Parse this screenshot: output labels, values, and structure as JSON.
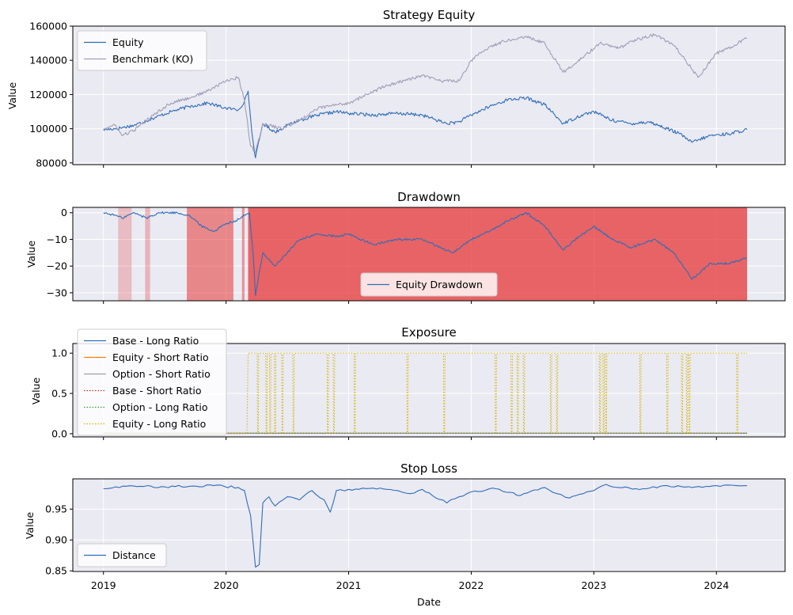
{
  "chart_data": [
    {
      "type": "line",
      "title": "Strategy Equity",
      "ylabel": "Value",
      "ylim": [
        79000,
        160000
      ],
      "yticks": [
        80000,
        100000,
        120000,
        140000,
        160000
      ],
      "ytick_labels": [
        "80000",
        "100000",
        "120000",
        "140000",
        "160000"
      ],
      "legend_position": "upper-left",
      "series": [
        {
          "name": "Equity",
          "color": "#2e6db8",
          "x": [
            2019.0,
            2019.1,
            2019.25,
            2019.4,
            2019.55,
            2019.7,
            2019.85,
            2020.0,
            2020.1,
            2020.15,
            2020.18,
            2020.21,
            2020.24,
            2020.3,
            2020.4,
            2020.5,
            2020.6,
            2020.75,
            2020.9,
            2021.0,
            2021.2,
            2021.4,
            2021.6,
            2021.8,
            2021.9,
            2022.0,
            2022.15,
            2022.3,
            2022.45,
            2022.6,
            2022.75,
            2022.9,
            2023.0,
            2023.15,
            2023.3,
            2023.45,
            2023.6,
            2023.7,
            2023.8,
            2023.95,
            2024.1,
            2024.25
          ],
          "y": [
            99500,
            100000,
            102000,
            106000,
            110000,
            113000,
            115000,
            112000,
            111000,
            116000,
            122000,
            98000,
            83000,
            103000,
            98000,
            102000,
            105000,
            108000,
            110000,
            109000,
            108000,
            109000,
            108000,
            103000,
            104000,
            108000,
            113000,
            117000,
            118000,
            114000,
            103000,
            108000,
            110000,
            105000,
            103000,
            104000,
            100000,
            97000,
            92000,
            96000,
            97000,
            99500
          ]
        },
        {
          "name": "Benchmark (KO)",
          "color": "#a09db8",
          "x": [
            2019.0,
            2019.1,
            2019.15,
            2019.25,
            2019.4,
            2019.55,
            2019.7,
            2019.85,
            2020.0,
            2020.1,
            2020.15,
            2020.2,
            2020.24,
            2020.3,
            2020.45,
            2020.6,
            2020.75,
            2020.9,
            2021.0,
            2021.15,
            2021.3,
            2021.45,
            2021.6,
            2021.75,
            2021.9,
            2022.0,
            2022.15,
            2022.3,
            2022.45,
            2022.6,
            2022.75,
            2022.9,
            2023.05,
            2023.2,
            2023.35,
            2023.5,
            2023.65,
            2023.75,
            2023.85,
            2024.0,
            2024.15,
            2024.25
          ],
          "y": [
            100000,
            102000,
            96000,
            99000,
            108000,
            115000,
            118000,
            122000,
            128000,
            130000,
            117000,
            90000,
            86000,
            103000,
            100000,
            105000,
            112000,
            114000,
            115000,
            120000,
            125000,
            128000,
            131000,
            128000,
            128000,
            140000,
            148000,
            152000,
            154000,
            150000,
            133000,
            141000,
            150000,
            147000,
            152000,
            155000,
            149000,
            140000,
            130000,
            144000,
            149000,
            153000
          ]
        }
      ]
    },
    {
      "type": "area",
      "title": "Drawdown",
      "ylabel": "Value",
      "ylim": [
        -33,
        2
      ],
      "yticks": [
        0,
        -10,
        -20,
        -30
      ],
      "ytick_labels": [
        "0",
        "−10",
        "−20",
        "−30"
      ],
      "legend_position": "lower-center",
      "drawdown_periods": [
        {
          "start": 2019.12,
          "end": 2019.23,
          "opacity": 0.25
        },
        {
          "start": 2019.34,
          "end": 2019.38,
          "opacity": 0.3
        },
        {
          "start": 2019.68,
          "end": 2020.06,
          "opacity": 0.55
        },
        {
          "start": 2020.13,
          "end": 2020.15,
          "opacity": 0.5
        },
        {
          "start": 2020.18,
          "end": 2024.25,
          "opacity": 0.75
        }
      ],
      "shade_color": "#e53535",
      "series": [
        {
          "name": "Equity Drawdown",
          "color": "#2e6db8",
          "x": [
            2019.0,
            2019.1,
            2019.15,
            2019.25,
            2019.35,
            2019.45,
            2019.6,
            2019.7,
            2019.8,
            2019.9,
            2020.0,
            2020.08,
            2020.15,
            2020.19,
            2020.22,
            2020.24,
            2020.3,
            2020.4,
            2020.5,
            2020.6,
            2020.75,
            2020.9,
            2021.0,
            2021.2,
            2021.4,
            2021.6,
            2021.75,
            2021.85,
            2022.0,
            2022.15,
            2022.3,
            2022.45,
            2022.6,
            2022.75,
            2022.85,
            2023.0,
            2023.15,
            2023.3,
            2023.5,
            2023.65,
            2023.8,
            2023.95,
            2024.1,
            2024.25
          ],
          "y": [
            0,
            -1,
            -2,
            0,
            -2,
            0,
            0,
            -1,
            -5,
            -7,
            -4,
            -3,
            -1,
            0,
            -15,
            -31,
            -15,
            -20,
            -15,
            -10,
            -8,
            -9,
            -8,
            -12,
            -10,
            -10,
            -13,
            -15,
            -10,
            -7,
            -3,
            0,
            -5,
            -14,
            -10,
            -5,
            -10,
            -13,
            -10,
            -15,
            -25,
            -19,
            -19,
            -17
          ]
        }
      ]
    },
    {
      "type": "line",
      "title": "Exposure",
      "ylabel": "Value",
      "ylim": [
        -0.04,
        1.12
      ],
      "yticks": [
        0.0,
        0.5,
        1.0
      ],
      "ytick_labels": [
        "0.0",
        "0.5",
        "1.0"
      ],
      "legend_position": "upper-left",
      "series": [
        {
          "name": "Base - Long Ratio",
          "color": "#2e6db8",
          "style": "solid"
        },
        {
          "name": "Equity - Short Ratio",
          "color": "#ff7f0e",
          "style": "solid"
        },
        {
          "name": "Option - Short Ratio",
          "color": "#a0a0a0",
          "style": "solid"
        },
        {
          "name": "Base - Short Ratio",
          "color": "#d62728",
          "style": "dotted"
        },
        {
          "name": "Option - Long Ratio",
          "color": "#2ca02c",
          "style": "dotted"
        },
        {
          "name": "Equity - Long Ratio",
          "color": "#d4b400",
          "style": "dotted",
          "value": 1.0,
          "flat_value": 0.0,
          "flat_start": 2019.0,
          "flat_end": 2020.17,
          "end": 2024.25,
          "dips": [
            2020.26,
            2020.33,
            2020.36,
            2020.4,
            2020.46,
            2020.55,
            2020.83,
            2020.88,
            2021.05,
            2021.48,
            2021.78,
            2022.2,
            2022.33,
            2022.38,
            2022.43,
            2022.65,
            2022.7,
            2023.05,
            2023.08,
            2023.1,
            2023.38,
            2023.6,
            2023.72,
            2023.76,
            2023.78,
            2024.17
          ]
        }
      ]
    },
    {
      "type": "line",
      "title": "Stop Loss",
      "ylabel": "Value",
      "xlabel": "Date",
      "ylim": [
        0.849,
        0.999
      ],
      "yticks": [
        0.85,
        0.9,
        0.95
      ],
      "ytick_labels": [
        "0.85",
        "0.90",
        "0.95"
      ],
      "legend_position": "lower-left",
      "series": [
        {
          "name": "Distance",
          "color": "#2e6db8",
          "x": [
            2019.0,
            2019.1,
            2019.3,
            2019.5,
            2019.7,
            2019.9,
            2020.1,
            2020.15,
            2020.2,
            2020.24,
            2020.27,
            2020.3,
            2020.35,
            2020.4,
            2020.5,
            2020.6,
            2020.7,
            2020.8,
            2020.85,
            2020.9,
            2021.0,
            2021.2,
            2021.4,
            2021.5,
            2021.6,
            2021.8,
            2021.9,
            2022.0,
            2022.2,
            2022.4,
            2022.6,
            2022.7,
            2022.8,
            2023.0,
            2023.1,
            2023.2,
            2023.4,
            2023.6,
            2023.8,
            2024.0,
            2024.25
          ],
          "y": [
            0.983,
            0.986,
            0.987,
            0.986,
            0.987,
            0.988,
            0.985,
            0.98,
            0.94,
            0.856,
            0.86,
            0.96,
            0.97,
            0.955,
            0.97,
            0.965,
            0.98,
            0.965,
            0.945,
            0.98,
            0.982,
            0.984,
            0.98,
            0.975,
            0.982,
            0.96,
            0.97,
            0.978,
            0.983,
            0.972,
            0.985,
            0.975,
            0.968,
            0.98,
            0.99,
            0.985,
            0.983,
            0.988,
            0.985,
            0.988,
            0.988
          ]
        }
      ]
    }
  ],
  "x_axis": {
    "xlim": [
      2018.75,
      2024.56
    ],
    "ticks": [
      2019,
      2020,
      2021,
      2022,
      2023,
      2024
    ],
    "tick_labels": [
      "2019",
      "2020",
      "2021",
      "2022",
      "2023",
      "2024"
    ],
    "xlabel": "Date"
  },
  "style": {
    "axes_background": "#eaeaf2",
    "grid_color": "#ffffff"
  }
}
